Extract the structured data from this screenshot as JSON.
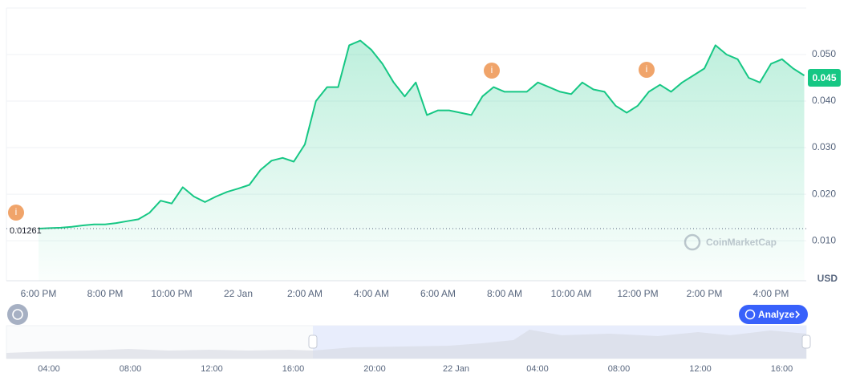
{
  "chart_data": {
    "type": "line",
    "categories": [
      "6:00 PM",
      null,
      null,
      null,
      null,
      null,
      "8:00 PM",
      null,
      null,
      null,
      null,
      null,
      "10:00 PM",
      null,
      null,
      null,
      null,
      null,
      "22 Jan",
      null,
      null,
      null,
      null,
      null,
      "2:00 AM",
      null,
      null,
      null,
      null,
      null,
      "4:00 AM",
      null,
      null,
      null,
      null,
      null,
      "6:00 AM",
      null,
      null,
      null,
      null,
      null,
      "8:00 AM",
      null,
      null,
      null,
      null,
      null,
      "10:00 AM",
      null,
      null,
      null,
      null,
      null,
      "12:00 PM",
      null,
      null,
      null,
      null,
      null,
      "2:00 PM",
      null,
      null,
      null,
      null,
      null,
      "4:00 PM",
      null,
      null,
      null
    ],
    "values": [
      0.0126,
      0.0127,
      0.0128,
      0.013,
      0.0133,
      0.0135,
      0.0135,
      0.0138,
      0.0142,
      0.0146,
      0.016,
      0.0186,
      0.018,
      0.0215,
      0.0195,
      0.0183,
      0.0195,
      0.0205,
      0.0212,
      0.022,
      0.0252,
      0.0272,
      0.0278,
      0.027,
      0.0307,
      0.04,
      0.043,
      0.043,
      0.052,
      0.053,
      0.051,
      0.048,
      0.044,
      0.041,
      0.044,
      0.037,
      0.038,
      0.038,
      0.0375,
      0.037,
      0.041,
      0.043,
      0.042,
      0.042,
      0.042,
      0.044,
      0.043,
      0.042,
      0.0415,
      0.044,
      0.0425,
      0.042,
      0.039,
      0.0375,
      0.039,
      0.042,
      0.0435,
      0.042,
      0.044,
      0.0455,
      0.047,
      0.052,
      0.05,
      0.049,
      0.045,
      0.044,
      0.048,
      0.049,
      0.047,
      0.0455
    ],
    "color": "#16c784",
    "ylim": [
      0.0014,
      0.06
    ],
    "yticks": [
      {
        "value": 0.01,
        "label": "0.010"
      },
      {
        "value": 0.02,
        "label": "0.020"
      },
      {
        "value": 0.03,
        "label": "0.030"
      },
      {
        "value": 0.04,
        "label": "0.040"
      },
      {
        "value": 0.05,
        "label": "0.050"
      }
    ],
    "grid": true,
    "current_price": 0.045,
    "reference_price": 0.01261,
    "unit_label": "USD",
    "watermark": "CoinMarketCap",
    "event_marker": "i",
    "analyze_button": "Analyze",
    "navigator": {
      "labels": [
        "04:00",
        "08:00",
        "12:00",
        "16:00",
        "20:00",
        "22 Jan",
        "04:00",
        "08:00",
        "12:00",
        "16:00"
      ]
    }
  }
}
